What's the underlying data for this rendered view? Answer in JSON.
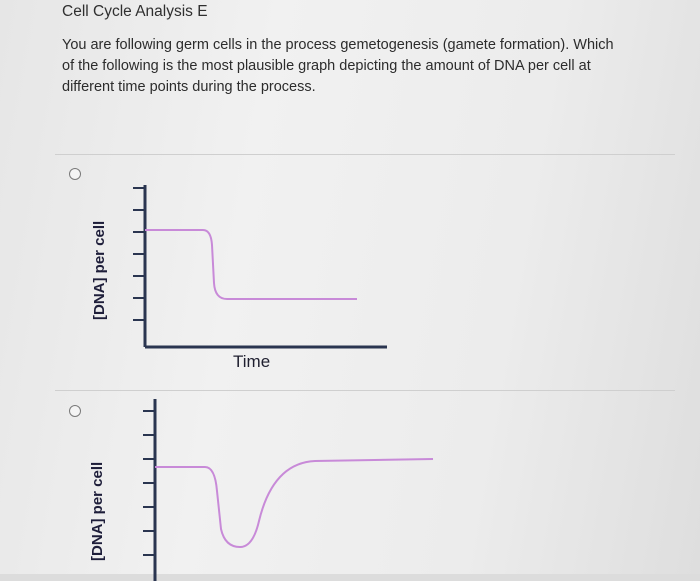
{
  "section": {
    "title": "Cell Cycle Analysis E"
  },
  "question": {
    "text": "You are following germ cells in the process gemetogenesis (gamete formation). Which of the following is the most plausible graph depicting the amount of DNA per cell at different time points during the process."
  },
  "options": [
    {
      "ylabel": "[DNA] per cell",
      "xlabel": "Time",
      "selected": false
    },
    {
      "ylabel": "[DNA] per cell",
      "xlabel": "",
      "selected": false
    }
  ],
  "colors": {
    "axis": "#2a3550",
    "curve": "#c88ad8"
  }
}
